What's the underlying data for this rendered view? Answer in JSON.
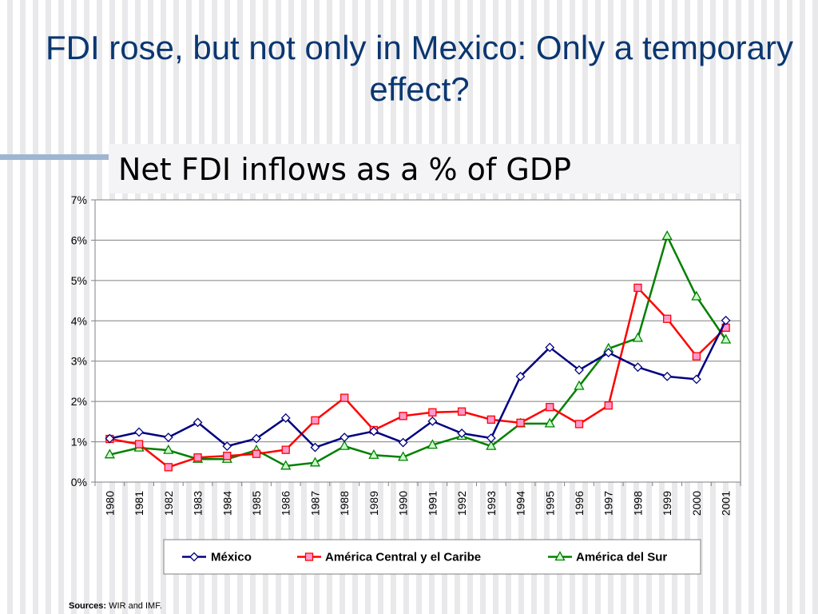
{
  "slide": {
    "title": "FDI rose, but not only in Mexico: Only a temporary effect?",
    "sources_label": "Sources:",
    "sources_text": " WIR and IMF."
  },
  "colors": {
    "title": "#0b3770",
    "accent_bar": "#9fb6d2"
  },
  "chart_data": {
    "type": "line",
    "title": "Net FDI inflows as a % of GDP",
    "xlabel": "",
    "ylabel": "",
    "ylim": [
      0,
      7
    ],
    "y_ticks": [
      "0%",
      "1%",
      "2%",
      "3%",
      "4%",
      "5%",
      "6%",
      "7%"
    ],
    "grid": true,
    "legend_position": "bottom",
    "categories": [
      "1980",
      "1981",
      "1982",
      "1983",
      "1984",
      "1985",
      "1986",
      "1987",
      "1988",
      "1989",
      "1990",
      "1991",
      "1992",
      "1993",
      "1994",
      "1995",
      "1996",
      "1997",
      "1998",
      "1999",
      "2000",
      "2001"
    ],
    "series": [
      {
        "name": "México",
        "color": "#000080",
        "marker": "diamond",
        "values": [
          1.08,
          1.24,
          1.11,
          1.48,
          0.89,
          1.08,
          1.59,
          0.86,
          1.11,
          1.26,
          0.98,
          1.51,
          1.21,
          1.09,
          2.62,
          3.34,
          2.78,
          3.21,
          2.85,
          2.62,
          2.55,
          4.01
        ]
      },
      {
        "name": "América Central y el Caribe",
        "color": "#ff0000",
        "marker": "square",
        "values": [
          1.07,
          0.94,
          0.37,
          0.61,
          0.65,
          0.7,
          0.8,
          1.53,
          2.09,
          1.29,
          1.64,
          1.73,
          1.75,
          1.55,
          1.47,
          1.86,
          1.44,
          1.9,
          4.82,
          4.05,
          3.12,
          3.83
        ]
      },
      {
        "name": "América del Sur",
        "color": "#008000",
        "marker": "triangle",
        "values": [
          0.68,
          0.85,
          0.79,
          0.57,
          0.57,
          0.79,
          0.4,
          0.48,
          0.89,
          0.67,
          0.62,
          0.92,
          1.14,
          0.89,
          1.45,
          1.45,
          2.38,
          3.31,
          3.57,
          6.1,
          4.6,
          3.53
        ]
      }
    ]
  }
}
